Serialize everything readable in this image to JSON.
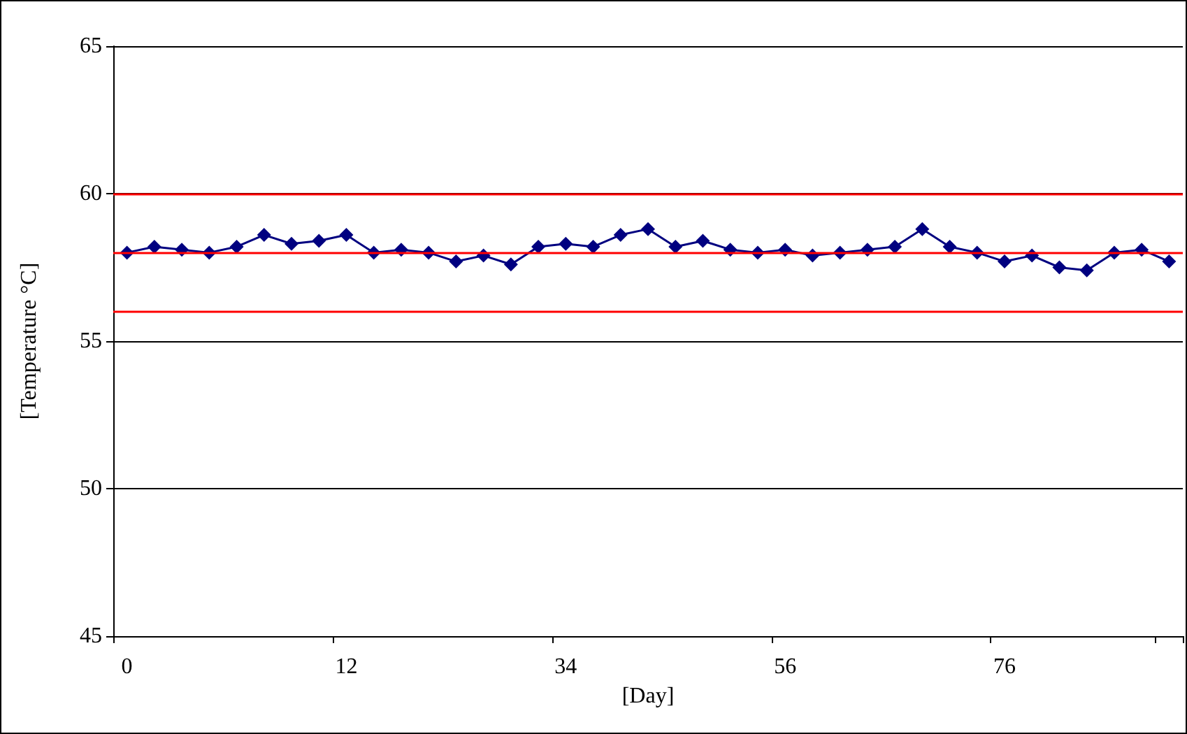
{
  "chart_data": {
    "type": "line",
    "xlabel": "[Day]",
    "ylabel": "[Temperature °C]",
    "categories": [
      "0",
      null,
      null,
      null,
      null,
      null,
      null,
      null,
      "12",
      null,
      null,
      null,
      null,
      null,
      null,
      null,
      "34",
      null,
      null,
      null,
      null,
      null,
      null,
      null,
      "56",
      null,
      null,
      null,
      null,
      null,
      null,
      null,
      "76",
      null,
      null,
      null,
      null,
      null,
      null
    ],
    "series": [
      {
        "color": "#000080",
        "values": [
          58.0,
          58.2,
          58.1,
          58.0,
          58.2,
          58.6,
          58.3,
          58.4,
          58.6,
          58.0,
          58.1,
          58.0,
          57.7,
          57.9,
          57.6,
          58.2,
          58.3,
          58.2,
          58.6,
          58.8,
          58.2,
          58.4,
          58.1,
          58.0,
          58.1,
          57.9,
          58.0,
          58.1,
          58.2,
          58.8,
          58.2,
          58.0,
          57.7,
          57.9,
          57.5,
          57.4,
          58.0,
          58.1,
          57.7
        ]
      }
    ],
    "ylim": [
      45,
      65
    ],
    "yticks": [
      45,
      50,
      55,
      60,
      65
    ],
    "grid": "y",
    "marker": "diamond",
    "line_style": "solid",
    "ref_lines": [
      {
        "axis": "y",
        "value": 60,
        "color": "#ff0000"
      },
      {
        "axis": "y",
        "value": 58,
        "color": "#ff0000"
      },
      {
        "axis": "y",
        "value": 56,
        "color": "#ff0000"
      }
    ]
  }
}
